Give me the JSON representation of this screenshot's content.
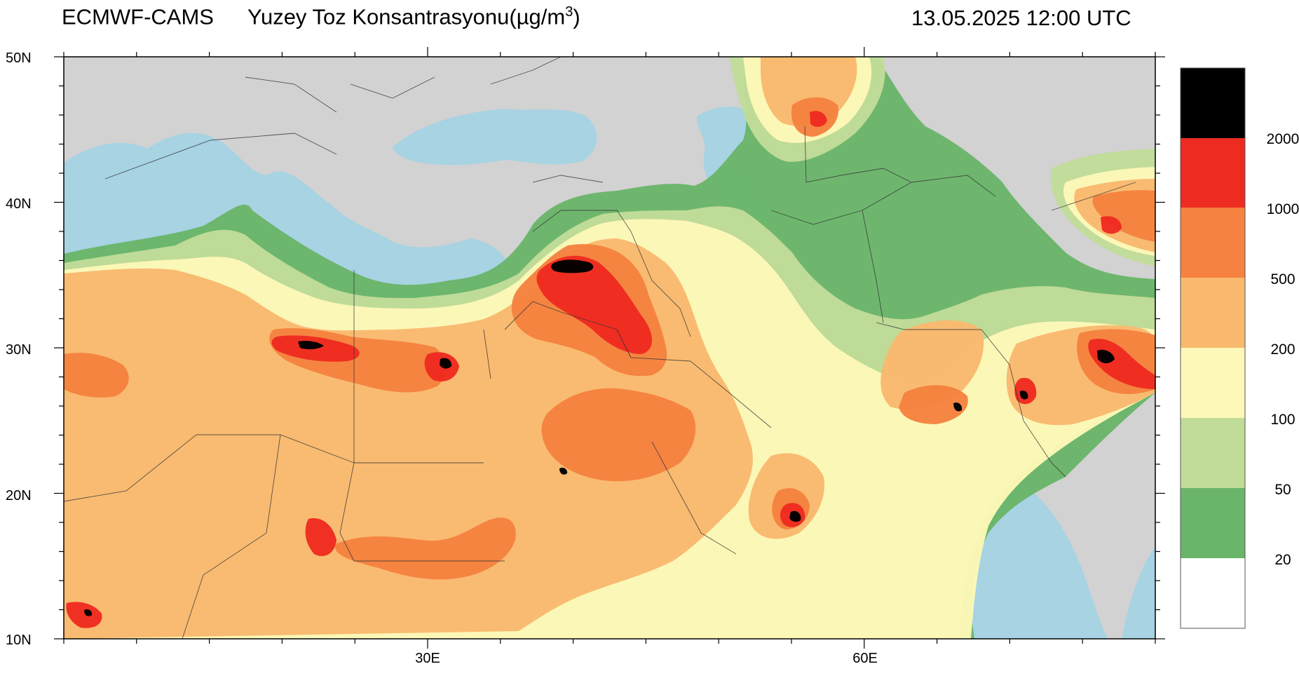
{
  "header": {
    "source": "ECMWF-CAMS",
    "title": "Yuzey Toz Konsantrasyonu(µg/m",
    "title_sup": "3",
    "title_end": ")",
    "datetime": "13.05.2025 12:00 UTC"
  },
  "axes": {
    "lat_labels": [
      "50N",
      "40N",
      "30N",
      "20N",
      "10N"
    ],
    "lon_labels": [
      "30E",
      "60E"
    ]
  },
  "legend": {
    "labels": [
      "2000",
      "1000",
      "500",
      "200",
      "100",
      "50",
      "20"
    ],
    "colors": [
      "#000000",
      "#ee2b20",
      "#f58240",
      "#f9b96e",
      "#fdf8b8",
      "#c1dc99",
      "#6ab56a",
      "#ffffff"
    ]
  },
  "map_colors": {
    "land": "#d2d2d2",
    "sea": "#a7d3e3"
  }
}
